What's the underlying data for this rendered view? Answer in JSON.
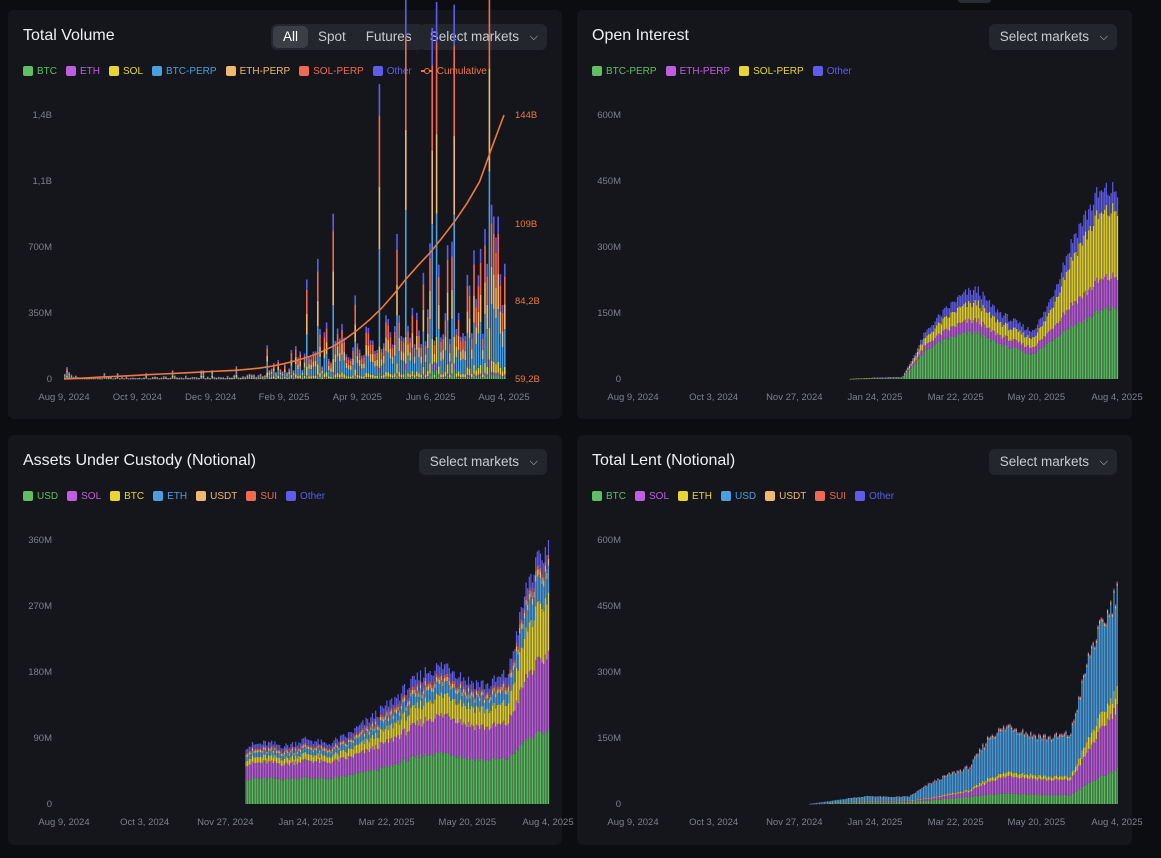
{
  "colors": {
    "BTC": "#5fbf63",
    "ETH": "#c05ee0",
    "SOL": "#e8d534",
    "BTC-PERP": "#4a9fe0",
    "ETH-PERP": "#f0b870",
    "SOL-PERP": "#ee6a52",
    "Other": "#5e5cea",
    "Cumulative": "#f0783c",
    "USD": "#5fbf63",
    "USDT": "#f0b870",
    "SUI": "#ee6a52"
  },
  "panels": [
    {
      "title": "Total Volume",
      "select_label": "Select markets",
      "chevron_icon": "chevron-down-icon",
      "segments": [
        {
          "label": "All",
          "active": true
        },
        {
          "label": "Spot",
          "active": false
        },
        {
          "label": "Futures",
          "active": false
        }
      ],
      "legend": [
        {
          "label": "BTC",
          "key": "BTC"
        },
        {
          "label": "ETH",
          "key": "ETH"
        },
        {
          "label": "SOL",
          "key": "SOL"
        },
        {
          "label": "BTC-PERP",
          "key": "BTC-PERP"
        },
        {
          "label": "ETH-PERP",
          "key": "ETH-PERP"
        },
        {
          "label": "SOL-PERP",
          "key": "SOL-PERP"
        },
        {
          "label": "Other",
          "key": "Other"
        },
        {
          "label": "Cumulative",
          "key": "Cumulative",
          "line": true
        }
      ]
    },
    {
      "title": "Open Interest",
      "select_label": "Select markets",
      "chevron_icon": "chevron-down-icon",
      "legend": [
        {
          "label": "BTC-PERP",
          "key": "BTC"
        },
        {
          "label": "ETH-PERP",
          "key": "ETH"
        },
        {
          "label": "SOL-PERP",
          "key": "SOL"
        },
        {
          "label": "Other",
          "key": "Other"
        }
      ]
    },
    {
      "title": "Assets Under Custody (Notional)",
      "select_label": "Select markets",
      "chevron_icon": "chevron-down-icon",
      "legend": [
        {
          "label": "USD",
          "key": "USD"
        },
        {
          "label": "SOL",
          "key": "ETH"
        },
        {
          "label": "BTC",
          "key": "SOL"
        },
        {
          "label": "ETH",
          "key": "BTC-PERP"
        },
        {
          "label": "USDT",
          "key": "USDT"
        },
        {
          "label": "SUI",
          "key": "SUI"
        },
        {
          "label": "Other",
          "key": "Other"
        }
      ]
    },
    {
      "title": "Total Lent (Notional)",
      "select_label": "Select markets",
      "chevron_icon": "chevron-down-icon",
      "legend": [
        {
          "label": "BTC",
          "key": "BTC"
        },
        {
          "label": "SOL",
          "key": "ETH"
        },
        {
          "label": "ETH",
          "key": "SOL"
        },
        {
          "label": "USD",
          "key": "BTC-PERP"
        },
        {
          "label": "USDT",
          "key": "USDT"
        },
        {
          "label": "SUI",
          "key": "SUI"
        },
        {
          "label": "Other",
          "key": "Other"
        }
      ]
    }
  ],
  "chart_data": [
    {
      "type": "bar",
      "stacked": true,
      "title": "Total Volume",
      "x_ticks": [
        "Aug 9, 2024",
        "Oct 9, 2024",
        "Dec 9, 2024",
        "Feb 9, 2025",
        "Apr 9, 2025",
        "Jun 6, 2025",
        "Aug 4, 2025"
      ],
      "y_ticks": [
        "0",
        "350M",
        "700M",
        "1,1B",
        "1,4B"
      ],
      "y_tick_values": [
        0,
        350,
        700,
        1050,
        1400
      ],
      "ylim": [
        0,
        1400
      ],
      "y2_ticks": [
        "59,2B",
        "84,2B",
        "109B",
        "144B"
      ],
      "y2_tick_values": [
        59.2,
        84.2,
        109,
        144
      ],
      "y2lim": [
        59.2,
        144
      ],
      "unit": "M",
      "x": [
        0,
        10,
        20,
        30,
        40,
        50,
        60,
        70,
        80,
        90,
        100,
        110,
        120,
        130,
        140,
        150,
        160,
        170,
        180,
        190,
        200,
        210,
        220,
        230,
        240,
        250,
        260,
        270,
        280,
        290,
        300,
        310,
        320,
        330,
        340,
        350,
        360
      ],
      "series": [
        {
          "name": "BTC",
          "key": "BTC",
          "values": [
            4,
            1,
            1,
            1,
            1,
            1,
            1,
            1,
            1,
            1,
            1,
            1,
            1,
            1,
            1,
            2,
            2,
            2,
            3,
            3,
            3,
            4,
            6,
            6,
            8,
            9,
            10,
            12,
            14,
            12,
            13,
            15,
            14,
            12,
            16,
            18,
            17
          ]
        },
        {
          "name": "ETH",
          "key": "ETH",
          "values": [
            3,
            1,
            1,
            1,
            1,
            1,
            1,
            1,
            1,
            1,
            1,
            1,
            1,
            1,
            1,
            1,
            1,
            1,
            2,
            2,
            2,
            3,
            4,
            4,
            5,
            6,
            7,
            8,
            9,
            8,
            9,
            10,
            9,
            8,
            11,
            12,
            11
          ]
        },
        {
          "name": "SOL",
          "key": "SOL",
          "values": [
            10,
            2,
            2,
            2,
            2,
            2,
            2,
            2,
            3,
            3,
            3,
            3,
            3,
            3,
            4,
            5,
            6,
            8,
            10,
            12,
            14,
            16,
            20,
            22,
            26,
            30,
            33,
            36,
            40,
            36,
            38,
            42,
            40,
            38,
            45,
            48,
            46
          ]
        },
        {
          "name": "BTC-PERP",
          "key": "BTC-PERP",
          "values": [
            20,
            2,
            2,
            2,
            2,
            2,
            2,
            2,
            3,
            3,
            3,
            3,
            3,
            4,
            5,
            6,
            10,
            20,
            30,
            40,
            50,
            60,
            80,
            90,
            110,
            130,
            150,
            170,
            190,
            160,
            170,
            200,
            180,
            170,
            220,
            240,
            230
          ]
        },
        {
          "name": "ETH-PERP",
          "key": "ETH-PERP",
          "values": [
            12,
            1,
            1,
            1,
            1,
            1,
            1,
            1,
            2,
            2,
            2,
            2,
            2,
            2,
            3,
            4,
            6,
            12,
            20,
            26,
            32,
            40,
            50,
            58,
            70,
            84,
            96,
            110,
            120,
            100,
            110,
            130,
            116,
            110,
            140,
            160,
            150
          ]
        },
        {
          "name": "SOL-PERP",
          "key": "SOL-PERP",
          "values": [
            14,
            1,
            1,
            1,
            1,
            1,
            1,
            1,
            2,
            2,
            2,
            2,
            2,
            3,
            3,
            4,
            7,
            14,
            24,
            30,
            38,
            46,
            60,
            66,
            80,
            96,
            110,
            126,
            140,
            116,
            126,
            150,
            134,
            126,
            164,
            184,
            172
          ]
        },
        {
          "name": "Other",
          "key": "Other",
          "values": [
            8,
            1,
            1,
            1,
            1,
            1,
            1,
            1,
            1,
            1,
            1,
            1,
            1,
            1,
            2,
            2,
            3,
            6,
            10,
            12,
            16,
            20,
            26,
            30,
            36,
            42,
            48,
            56,
            62,
            52,
            56,
            66,
            60,
            56,
            72,
            80,
            76
          ]
        }
      ],
      "cumulative": {
        "name": "Cumulative",
        "key": "Cumulative",
        "values": [
          59.2,
          59.4,
          59.6,
          59.8,
          60.0,
          60.2,
          60.4,
          60.6,
          60.8,
          61.0,
          61.2,
          61.4,
          61.6,
          61.8,
          62.0,
          62.3,
          62.7,
          63.3,
          64.1,
          65.1,
          66.3,
          67.8,
          69.7,
          72.0,
          74.9,
          78.2,
          82.0,
          86.5,
          91.4,
          95.8,
          100.0,
          104.9,
          110.0,
          115.8,
          122.6,
          133.5,
          144.0
        ]
      }
    },
    {
      "type": "area",
      "stacked": true,
      "title": "Open Interest",
      "x_ticks": [
        "Aug 9, 2024",
        "Oct 3, 2024",
        "Nov 27, 2024",
        "Jan 24, 2025",
        "Mar 22, 2025",
        "May 20, 2025",
        "Aug 4, 2025"
      ],
      "y_ticks": [
        "0",
        "150M",
        "300M",
        "450M",
        "600M"
      ],
      "y_tick_values": [
        0,
        150,
        300,
        450,
        600
      ],
      "ylim": [
        0,
        600
      ],
      "unit": "M",
      "x": [
        160,
        180,
        200,
        208,
        216,
        224,
        232,
        240,
        248,
        256,
        264,
        272,
        280,
        288,
        296,
        304,
        312,
        320,
        328,
        336,
        344,
        352,
        360
      ],
      "series": [
        {
          "name": "BTC-PERP",
          "key": "BTC",
          "values": [
            0,
            1,
            2,
            30,
            60,
            78,
            88,
            98,
            104,
            106,
            90,
            80,
            72,
            64,
            56,
            70,
            90,
            110,
            124,
            134,
            150,
            158,
            162
          ]
        },
        {
          "name": "ETH-PERP",
          "key": "ETH",
          "values": [
            0,
            1,
            1,
            6,
            12,
            16,
            20,
            24,
            26,
            27,
            22,
            20,
            18,
            16,
            15,
            20,
            28,
            40,
            52,
            60,
            68,
            70,
            72
          ]
        },
        {
          "name": "SOL-PERP",
          "key": "SOL",
          "values": [
            0,
            1,
            1,
            8,
            16,
            22,
            28,
            34,
            38,
            40,
            34,
            30,
            26,
            24,
            22,
            30,
            50,
            80,
            110,
            130,
            146,
            150,
            152
          ]
        },
        {
          "name": "Other",
          "key": "Other",
          "values": [
            0,
            0,
            1,
            6,
            12,
            16,
            20,
            24,
            28,
            30,
            26,
            22,
            20,
            18,
            16,
            20,
            26,
            34,
            42,
            46,
            50,
            48,
            44
          ]
        }
      ]
    },
    {
      "type": "area",
      "stacked": true,
      "title": "Assets Under Custody (Notional)",
      "x_ticks": [
        "Aug 9, 2024",
        "Oct 3, 2024",
        "Nov 27, 2024",
        "Jan 24, 2025",
        "Mar 22, 2025",
        "May 20, 2025",
        "Aug 4, 2025"
      ],
      "y_ticks": [
        "0",
        "90M",
        "180M",
        "270M",
        "360M"
      ],
      "y_tick_values": [
        0,
        90,
        180,
        270,
        360
      ],
      "ylim": [
        0,
        360
      ],
      "unit": "M",
      "x": [
        135,
        150,
        165,
        180,
        195,
        210,
        225,
        240,
        255,
        270,
        285,
        300,
        315,
        330,
        345,
        360
      ],
      "series": [
        {
          "name": "USD",
          "key": "USD",
          "values": [
            34,
            35,
            34,
            36,
            34,
            38,
            44,
            50,
            60,
            68,
            70,
            62,
            60,
            62,
            90,
            100
          ]
        },
        {
          "name": "SOL",
          "key": "ETH",
          "values": [
            20,
            22,
            20,
            24,
            22,
            24,
            28,
            34,
            40,
            48,
            52,
            46,
            44,
            48,
            88,
            104
          ]
        },
        {
          "name": "BTC",
          "key": "SOL",
          "values": [
            8,
            8,
            8,
            9,
            8,
            10,
            14,
            18,
            22,
            26,
            28,
            26,
            24,
            28,
            66,
            78
          ]
        },
        {
          "name": "ETH",
          "key": "BTC-PERP",
          "values": [
            6,
            6,
            6,
            7,
            6,
            8,
            10,
            12,
            14,
            16,
            16,
            14,
            14,
            16,
            30,
            36
          ]
        },
        {
          "name": "USDT",
          "key": "USDT",
          "values": [
            3,
            3,
            3,
            3,
            3,
            3,
            4,
            5,
            5,
            6,
            6,
            5,
            5,
            6,
            8,
            9
          ]
        },
        {
          "name": "SUI",
          "key": "SUI",
          "values": [
            2,
            2,
            2,
            2,
            2,
            2,
            3,
            3,
            4,
            4,
            4,
            3,
            3,
            4,
            5,
            5
          ]
        },
        {
          "name": "Other",
          "key": "Other",
          "values": [
            6,
            7,
            6,
            8,
            6,
            8,
            10,
            12,
            14,
            14,
            14,
            12,
            12,
            14,
            18,
            20
          ]
        }
      ]
    },
    {
      "type": "area",
      "stacked": true,
      "title": "Total Lent (Notional)",
      "x_ticks": [
        "Aug 9, 2024",
        "Oct 3, 2024",
        "Nov 27, 2024",
        "Jan 24, 2025",
        "Mar 22, 2025",
        "May 20, 2025",
        "Aug 4, 2025"
      ],
      "y_ticks": [
        "0",
        "150M",
        "300M",
        "450M",
        "600M"
      ],
      "y_tick_values": [
        0,
        150,
        300,
        450,
        600
      ],
      "ylim": [
        0,
        600
      ],
      "unit": "M",
      "x": [
        130,
        145,
        160,
        175,
        190,
        205,
        220,
        235,
        250,
        265,
        280,
        295,
        310,
        325,
        340,
        352,
        360
      ],
      "series": [
        {
          "name": "BTC",
          "key": "BTC",
          "values": [
            0,
            1,
            3,
            4,
            4,
            5,
            8,
            12,
            16,
            22,
            24,
            22,
            20,
            20,
            50,
            68,
            80
          ]
        },
        {
          "name": "SOL",
          "key": "ETH",
          "values": [
            0,
            1,
            1,
            2,
            2,
            2,
            4,
            8,
            12,
            30,
            40,
            36,
            34,
            34,
            80,
            120,
            140
          ]
        },
        {
          "name": "ETH",
          "key": "SOL",
          "values": [
            0,
            0,
            1,
            1,
            1,
            1,
            2,
            3,
            4,
            8,
            10,
            9,
            8,
            8,
            28,
            34,
            40
          ]
        },
        {
          "name": "USD",
          "key": "BTC-PERP",
          "values": [
            0,
            4,
            8,
            10,
            8,
            8,
            30,
            42,
            48,
            90,
            100,
            86,
            84,
            92,
            188,
            200,
            220
          ]
        },
        {
          "name": "USDT",
          "key": "USDT",
          "values": [
            0,
            0,
            0,
            1,
            1,
            1,
            1,
            2,
            2,
            3,
            3,
            3,
            3,
            3,
            4,
            5,
            5
          ]
        },
        {
          "name": "SUI",
          "key": "SUI",
          "values": [
            0,
            0,
            0,
            0,
            0,
            0,
            1,
            1,
            2,
            2,
            2,
            2,
            2,
            2,
            2,
            2,
            3
          ]
        },
        {
          "name": "Other",
          "key": "Other",
          "values": [
            0,
            0,
            0,
            0,
            0,
            0,
            1,
            1,
            2,
            2,
            2,
            2,
            2,
            2,
            2,
            2,
            2
          ]
        }
      ]
    }
  ]
}
